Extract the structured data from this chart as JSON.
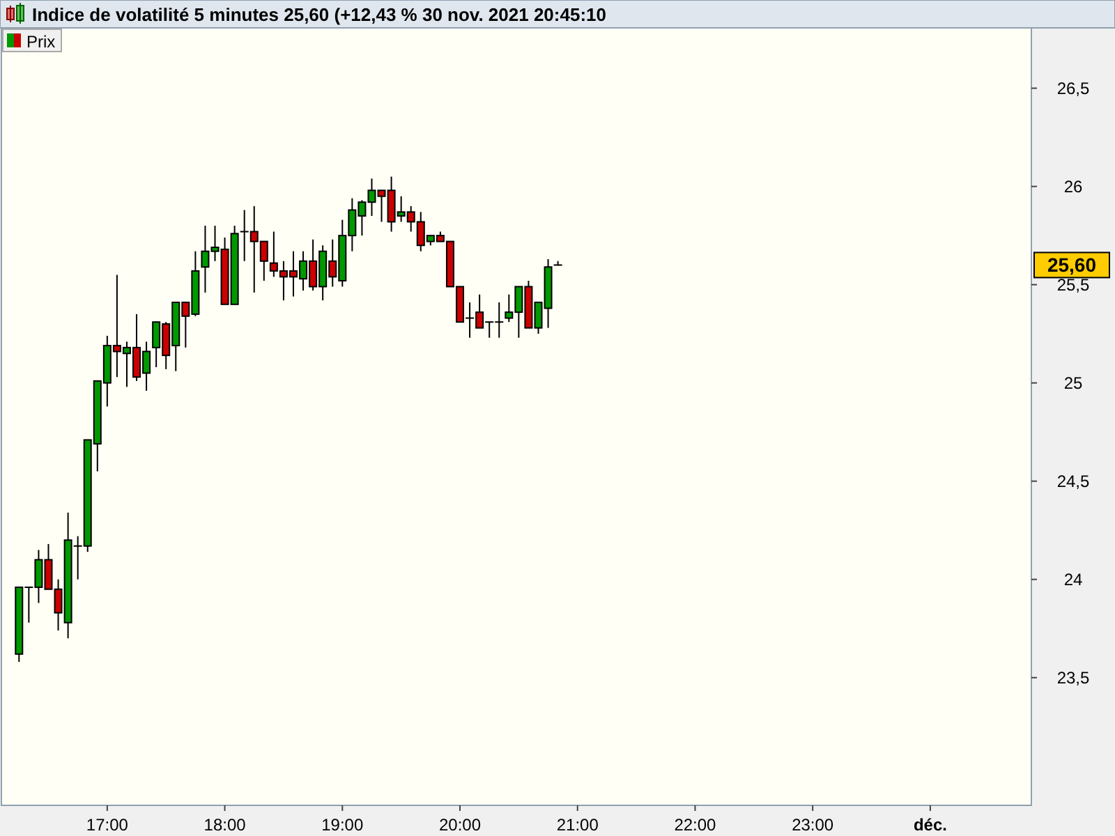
{
  "chart_data": {
    "type": "candlestick",
    "title": "Indice de volatilité 5 minutes 25,60 (+12,43 % 30 nov. 2021 20:45:10",
    "x": [
      16.25,
      16.3333,
      16.4167,
      16.5,
      16.5833,
      16.6667,
      16.75,
      16.8333,
      16.9167,
      17,
      17.0833,
      17.1667,
      17.25,
      17.3333,
      17.4167,
      17.5,
      17.5833,
      17.6667,
      17.75,
      17.8333,
      17.9167,
      18,
      18.0833,
      18.1667,
      18.25,
      18.3333,
      18.4167,
      18.5,
      18.5833,
      18.6667,
      18.75,
      18.8333,
      18.9167,
      19,
      19.0833,
      19.1667,
      19.25,
      19.3333,
      19.4167,
      19.5,
      19.5833,
      19.6667,
      19.75,
      19.8333,
      19.9167,
      20,
      20.0833,
      20.1667,
      20.25,
      20.3333,
      20.4167,
      20.5,
      20.5833,
      20.6667,
      20.75,
      20.8333
    ],
    "series": [
      {
        "name": "Prix",
        "ohlc": [
          [
            23.62,
            23.96,
            23.58,
            23.96
          ],
          [
            23.96,
            23.96,
            23.78,
            23.96
          ],
          [
            23.96,
            24.15,
            23.88,
            24.1
          ],
          [
            24.1,
            24.18,
            23.95,
            23.95
          ],
          [
            23.95,
            24.0,
            23.74,
            23.83
          ],
          [
            23.78,
            24.34,
            23.7,
            24.2
          ],
          [
            24.17,
            24.22,
            24.0,
            24.17
          ],
          [
            24.17,
            24.71,
            24.14,
            24.71
          ],
          [
            24.69,
            25.01,
            24.55,
            25.01
          ],
          [
            25.0,
            25.24,
            24.88,
            25.19
          ],
          [
            25.19,
            25.55,
            25.03,
            25.16
          ],
          [
            25.15,
            25.21,
            24.98,
            25.18
          ],
          [
            25.18,
            25.35,
            25.01,
            25.03
          ],
          [
            25.05,
            25.21,
            24.96,
            25.16
          ],
          [
            25.18,
            25.31,
            25.08,
            25.31
          ],
          [
            25.3,
            25.31,
            25.07,
            25.14
          ],
          [
            25.19,
            25.41,
            25.06,
            25.41
          ],
          [
            25.41,
            25.41,
            25.18,
            25.34
          ],
          [
            25.35,
            25.67,
            25.34,
            25.57
          ],
          [
            25.59,
            25.8,
            25.46,
            25.67
          ],
          [
            25.67,
            25.8,
            25.62,
            25.69
          ],
          [
            25.68,
            25.74,
            25.4,
            25.4
          ],
          [
            25.4,
            25.8,
            25.4,
            25.76
          ],
          [
            25.77,
            25.88,
            25.62,
            25.77
          ],
          [
            25.77,
            25.9,
            25.46,
            25.72
          ],
          [
            25.72,
            25.72,
            25.52,
            25.62
          ],
          [
            25.61,
            25.77,
            25.54,
            25.57
          ],
          [
            25.57,
            25.62,
            25.42,
            25.54
          ],
          [
            25.57,
            25.67,
            25.44,
            25.54
          ],
          [
            25.53,
            25.67,
            25.47,
            25.62
          ],
          [
            25.62,
            25.73,
            25.47,
            25.49
          ],
          [
            25.49,
            25.7,
            25.42,
            25.67
          ],
          [
            25.62,
            25.73,
            25.49,
            25.54
          ],
          [
            25.52,
            25.83,
            25.49,
            25.75
          ],
          [
            25.75,
            25.94,
            25.67,
            25.88
          ],
          [
            25.85,
            25.93,
            25.75,
            25.92
          ],
          [
            25.92,
            26.04,
            25.85,
            25.98
          ],
          [
            25.98,
            25.98,
            25.82,
            25.95
          ],
          [
            25.98,
            26.05,
            25.77,
            25.82
          ],
          [
            25.85,
            25.95,
            25.82,
            25.87
          ],
          [
            25.87,
            25.9,
            25.77,
            25.82
          ],
          [
            25.82,
            25.87,
            25.67,
            25.7
          ],
          [
            25.72,
            25.75,
            25.7,
            25.75
          ],
          [
            25.75,
            25.77,
            25.72,
            25.72
          ],
          [
            25.72,
            25.72,
            25.49,
            25.49
          ],
          [
            25.49,
            25.49,
            25.31,
            25.31
          ],
          [
            25.33,
            25.41,
            25.23,
            25.33
          ],
          [
            25.36,
            25.45,
            25.28,
            25.28
          ],
          [
            25.31,
            25.31,
            25.23,
            25.31
          ],
          [
            25.31,
            25.41,
            25.23,
            25.31
          ],
          [
            25.33,
            25.45,
            25.31,
            25.36
          ],
          [
            25.36,
            25.49,
            25.23,
            25.49
          ],
          [
            25.49,
            25.52,
            25.28,
            25.28
          ],
          [
            25.28,
            25.41,
            25.25,
            25.41
          ],
          [
            25.38,
            25.63,
            25.28,
            25.59
          ],
          [
            25.6,
            25.62,
            25.6,
            25.6
          ]
        ],
        "colors": [
          "#009900",
          "#000000",
          "#009900",
          "#cc0000",
          "#cc0000",
          "#009900",
          "#000000",
          "#009900",
          "#009900",
          "#009900",
          "#cc0000",
          "#009900",
          "#cc0000",
          "#009900",
          "#009900",
          "#cc0000",
          "#009900",
          "#cc0000",
          "#009900",
          "#009900",
          "#009900",
          "#cc0000",
          "#009900",
          "#000000",
          "#cc0000",
          "#cc0000",
          "#cc0000",
          "#cc0000",
          "#cc0000",
          "#009900",
          "#cc0000",
          "#009900",
          "#cc0000",
          "#009900",
          "#009900",
          "#009900",
          "#009900",
          "#cc0000",
          "#cc0000",
          "#009900",
          "#cc0000",
          "#cc0000",
          "#009900",
          "#cc0000",
          "#cc0000",
          "#cc0000",
          "#000000",
          "#cc0000",
          "#000000",
          "#000000",
          "#009900",
          "#009900",
          "#cc0000",
          "#009900",
          "#009900",
          "#000000"
        ]
      }
    ],
    "xlim": [
      16.1,
      24.86
    ],
    "xticks": [
      {
        "value": 17,
        "label": "17:00"
      },
      {
        "value": 18,
        "label": "18:00"
      },
      {
        "value": 19,
        "label": "19:00"
      },
      {
        "value": 20,
        "label": "20:00"
      },
      {
        "value": 21,
        "label": "21:00"
      },
      {
        "value": 22,
        "label": "22:00"
      },
      {
        "value": 23,
        "label": "23:00"
      },
      {
        "value": 24,
        "label": "déc."
      }
    ],
    "ylim": [
      22.85,
      26.8
    ],
    "yticks": [
      {
        "value": 23.5,
        "label": "23,5"
      },
      24,
      {
        "value": 24.5,
        "label": "24,5"
      },
      25,
      {
        "value": 25.5,
        "label": "25,5"
      },
      26,
      {
        "value": 26.5,
        "label": "26,5"
      }
    ],
    "annotations": [
      "25,60"
    ],
    "legend": "top left",
    "grid": false
  }
}
